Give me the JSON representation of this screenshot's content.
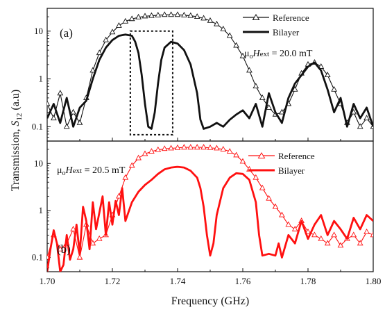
{
  "chart_data": {
    "type": "line",
    "xlabel": "Frequency (GHz)",
    "ylabel_prefix": "Transmission, ",
    "ylabel_sym": "S",
    "ylabel_sub": "12",
    "ylabel_suffix": " (a.u)",
    "xlim": [
      1.7,
      1.8
    ],
    "x_ticks": [
      "1.70",
      "1.72",
      "1.74",
      "1.76",
      "1.78",
      "1.80"
    ],
    "y_scale": "log",
    "y_ticks": [
      "0.1",
      "1",
      "10"
    ],
    "panels": [
      {
        "label": "(a)",
        "color": "#111111",
        "ylim": [
          0.05,
          30
        ],
        "field_text": {
          "mu": "μ",
          "sub": "o",
          "H": "H",
          "ext": "ext",
          "value": " = 20.0 mT"
        },
        "dashed_box": {
          "x": [
            1.7255,
            1.7385
          ],
          "y": [
            0.068,
            10
          ]
        },
        "series": [
          {
            "name": "Reference",
            "style": "line-triangle",
            "x": [
              1.7,
              1.702,
              1.704,
              1.706,
              1.708,
              1.71,
              1.712,
              1.714,
              1.716,
              1.718,
              1.72,
              1.722,
              1.724,
              1.726,
              1.728,
              1.73,
              1.732,
              1.734,
              1.736,
              1.738,
              1.74,
              1.742,
              1.744,
              1.746,
              1.748,
              1.75,
              1.752,
              1.754,
              1.756,
              1.758,
              1.76,
              1.762,
              1.764,
              1.766,
              1.768,
              1.77,
              1.772,
              1.774,
              1.776,
              1.778,
              1.78,
              1.782,
              1.784,
              1.786,
              1.788,
              1.79,
              1.792,
              1.794,
              1.796,
              1.798,
              1.8
            ],
            "y": [
              0.3,
              0.15,
              0.5,
              0.1,
              0.2,
              0.12,
              0.4,
              1.5,
              3.5,
              6.5,
              9.5,
              13,
              16,
              18,
              19.5,
              20.5,
              21,
              21.5,
              22,
              22,
              22,
              21.5,
              21,
              20,
              18.5,
              16.5,
              14,
              11,
              8,
              5,
              3,
              1.5,
              0.7,
              0.4,
              0.25,
              0.18,
              0.2,
              0.3,
              0.6,
              1.3,
              2,
              2.2,
              1.8,
              1.2,
              0.6,
              0.3,
              0.12,
              0.2,
              0.1,
              0.15,
              0.1
            ]
          },
          {
            "name": "Bilayer",
            "style": "thick-line",
            "x": [
              1.7,
              1.702,
              1.704,
              1.706,
              1.708,
              1.71,
              1.712,
              1.714,
              1.716,
              1.718,
              1.72,
              1.722,
              1.724,
              1.726,
              1.727,
              1.728,
              1.729,
              1.73,
              1.731,
              1.732,
              1.733,
              1.734,
              1.735,
              1.736,
              1.738,
              1.74,
              1.742,
              1.744,
              1.746,
              1.747,
              1.748,
              1.75,
              1.752,
              1.754,
              1.756,
              1.758,
              1.76,
              1.762,
              1.764,
              1.766,
              1.768,
              1.77,
              1.772,
              1.774,
              1.776,
              1.778,
              1.78,
              1.782,
              1.784,
              1.786,
              1.788,
              1.79,
              1.792,
              1.794,
              1.796,
              1.798,
              1.8
            ],
            "y": [
              0.15,
              0.3,
              0.12,
              0.4,
              0.1,
              0.25,
              0.35,
              1,
              2.5,
              4.5,
              6.5,
              8,
              8.5,
              8,
              6,
              3.5,
              1.2,
              0.3,
              0.1,
              0.09,
              0.2,
              0.8,
              2.5,
              4.5,
              6,
              5.5,
              4,
              2,
              0.5,
              0.14,
              0.09,
              0.1,
              0.12,
              0.1,
              0.14,
              0.18,
              0.22,
              0.15,
              0.3,
              0.1,
              0.5,
              0.2,
              0.12,
              0.4,
              0.8,
              1.2,
              1.8,
              2.2,
              1.5,
              0.6,
              0.2,
              0.4,
              0.1,
              0.3,
              0.15,
              0.25,
              0.1
            ]
          }
        ]
      },
      {
        "label": "(b)",
        "color": "#ff1010",
        "ylim": [
          0.05,
          30
        ],
        "field_text": {
          "mu": "μ",
          "sub": "o",
          "H": "H",
          "ext": "ext",
          "value": " = 20.5 mT"
        },
        "series": [
          {
            "name": "Reference",
            "style": "line-triangle",
            "x": [
              1.7,
              1.702,
              1.704,
              1.706,
              1.708,
              1.71,
              1.712,
              1.714,
              1.716,
              1.718,
              1.72,
              1.722,
              1.724,
              1.726,
              1.728,
              1.73,
              1.732,
              1.734,
              1.736,
              1.738,
              1.74,
              1.742,
              1.744,
              1.746,
              1.748,
              1.75,
              1.752,
              1.754,
              1.756,
              1.758,
              1.76,
              1.762,
              1.764,
              1.766,
              1.768,
              1.77,
              1.772,
              1.774,
              1.776,
              1.778,
              1.78,
              1.782,
              1.784,
              1.786,
              1.788,
              1.79,
              1.792,
              1.794,
              1.796,
              1.798,
              1.8
            ],
            "y": [
              0.1,
              0.3,
              0.15,
              0.2,
              0.4,
              0.1,
              0.5,
              0.2,
              0.25,
              0.3,
              0.8,
              2,
              5,
              9,
              13,
              16,
              18,
              19.5,
              20.5,
              21,
              21.5,
              22,
              22,
              22,
              22,
              21.5,
              21,
              20,
              18,
              15,
              11,
              7.5,
              5,
              3,
              1.8,
              1.2,
              0.8,
              0.5,
              0.4,
              0.6,
              0.35,
              0.3,
              0.25,
              0.2,
              0.3,
              0.18,
              0.25,
              0.3,
              0.2,
              0.35,
              0.3
            ]
          },
          {
            "name": "Bilayer",
            "style": "thick-line",
            "x": [
              1.7,
              1.701,
              1.702,
              1.703,
              1.704,
              1.705,
              1.706,
              1.707,
              1.708,
              1.709,
              1.71,
              1.711,
              1.712,
              1.713,
              1.714,
              1.715,
              1.716,
              1.717,
              1.718,
              1.719,
              1.72,
              1.721,
              1.722,
              1.723,
              1.724,
              1.726,
              1.728,
              1.73,
              1.732,
              1.734,
              1.736,
              1.738,
              1.74,
              1.742,
              1.744,
              1.746,
              1.747,
              1.748,
              1.749,
              1.75,
              1.751,
              1.752,
              1.754,
              1.756,
              1.758,
              1.76,
              1.762,
              1.764,
              1.765,
              1.766,
              1.768,
              1.77,
              1.771,
              1.772,
              1.774,
              1.776,
              1.778,
              1.78,
              1.782,
              1.784,
              1.786,
              1.788,
              1.79,
              1.792,
              1.794,
              1.796,
              1.798,
              1.8
            ],
            "y": [
              0.05,
              0.15,
              0.38,
              0.2,
              0.05,
              0.07,
              0.3,
              0.09,
              0.15,
              0.5,
              0.12,
              1.2,
              0.6,
              0.15,
              1.5,
              0.4,
              0.9,
              2,
              0.3,
              1.5,
              0.5,
              1.6,
              0.8,
              3,
              0.6,
              1.5,
              2.5,
              3.5,
              4.5,
              6,
              7.5,
              8.2,
              8.5,
              8.2,
              7,
              5,
              3,
              1.2,
              0.3,
              0.11,
              0.2,
              0.8,
              3,
              5,
              6.2,
              6,
              4.5,
              1.5,
              0.3,
              0.11,
              0.12,
              0.11,
              0.2,
              0.1,
              0.3,
              0.2,
              0.6,
              0.25,
              0.5,
              0.8,
              0.3,
              0.6,
              0.4,
              0.25,
              0.7,
              0.4,
              0.8,
              0.6
            ]
          }
        ]
      }
    ]
  }
}
